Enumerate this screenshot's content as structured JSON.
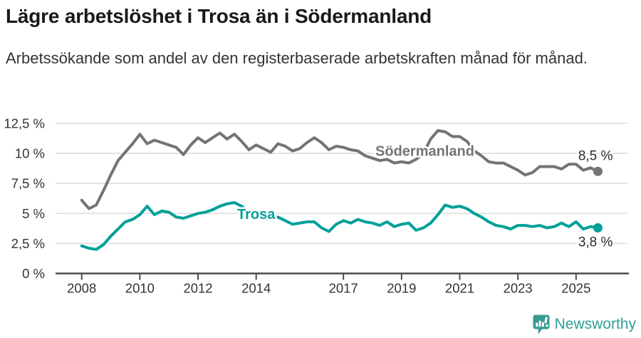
{
  "header": {
    "title": "Lägre arbetslöshet i Trosa än i Södermanland",
    "subtitle": "Arbetssökande som andel av den registerbaserade arbetskraften månad för månad."
  },
  "chart_data": {
    "type": "line",
    "unit": "%",
    "grid": "horizontal",
    "legend_position": "inline-labels",
    "colors": {
      "grid_line": "#dedede",
      "axis_line": "#4c4c4c",
      "tick_text": "#333333",
      "end_label_text": "#2b2b2b",
      "halo": "#ffffff"
    },
    "y_axis": {
      "range": [
        0,
        12.5
      ],
      "ticks": [
        {
          "value": 0,
          "label": "0 %"
        },
        {
          "value": 2.5,
          "label": "2,5 %"
        },
        {
          "value": 5,
          "label": "5 %"
        },
        {
          "value": 7.5,
          "label": "7,5 %"
        },
        {
          "value": 10,
          "label": "10 %"
        },
        {
          "value": 12.5,
          "label": "12,5 %"
        }
      ]
    },
    "x_axis": {
      "range": [
        2008,
        2025.75
      ],
      "ticks": [
        {
          "value": 2008,
          "label": "2008"
        },
        {
          "value": 2010,
          "label": "2010"
        },
        {
          "value": 2012,
          "label": "2012"
        },
        {
          "value": 2014,
          "label": "2014"
        },
        {
          "value": 2017,
          "label": "2017"
        },
        {
          "value": 2019,
          "label": "2019"
        },
        {
          "value": 2021,
          "label": "2021"
        },
        {
          "value": 2023,
          "label": "2023"
        },
        {
          "value": 2025,
          "label": "2025"
        }
      ]
    },
    "series": [
      {
        "name": "Södermanland",
        "color": "#737378",
        "end_label": "8,5 %",
        "end_label_side": "above",
        "label_anchor": {
          "x": 2019.8,
          "v": 9.8
        },
        "points": [
          [
            2008.0,
            6.1
          ],
          [
            2008.25,
            5.4
          ],
          [
            2008.5,
            5.7
          ],
          [
            2008.75,
            6.9
          ],
          [
            2009.0,
            8.2
          ],
          [
            2009.25,
            9.4
          ],
          [
            2009.5,
            10.1
          ],
          [
            2009.75,
            10.8
          ],
          [
            2010.0,
            11.6
          ],
          [
            2010.25,
            10.8
          ],
          [
            2010.5,
            11.1
          ],
          [
            2010.75,
            10.9
          ],
          [
            2011.0,
            10.7
          ],
          [
            2011.25,
            10.5
          ],
          [
            2011.5,
            9.9
          ],
          [
            2011.75,
            10.7
          ],
          [
            2012.0,
            11.3
          ],
          [
            2012.25,
            10.9
          ],
          [
            2012.5,
            11.3
          ],
          [
            2012.75,
            11.7
          ],
          [
            2013.0,
            11.2
          ],
          [
            2013.25,
            11.6
          ],
          [
            2013.5,
            11.0
          ],
          [
            2013.75,
            10.3
          ],
          [
            2014.0,
            10.7
          ],
          [
            2014.25,
            10.4
          ],
          [
            2014.5,
            10.1
          ],
          [
            2014.75,
            10.8
          ],
          [
            2015.0,
            10.6
          ],
          [
            2015.25,
            10.2
          ],
          [
            2015.5,
            10.4
          ],
          [
            2015.75,
            10.9
          ],
          [
            2016.0,
            11.3
          ],
          [
            2016.25,
            10.9
          ],
          [
            2016.5,
            10.3
          ],
          [
            2016.75,
            10.6
          ],
          [
            2017.0,
            10.5
          ],
          [
            2017.25,
            10.3
          ],
          [
            2017.5,
            10.2
          ],
          [
            2017.75,
            9.8
          ],
          [
            2018.0,
            9.6
          ],
          [
            2018.25,
            9.4
          ],
          [
            2018.5,
            9.5
          ],
          [
            2018.75,
            9.2
          ],
          [
            2019.0,
            9.3
          ],
          [
            2019.25,
            9.2
          ],
          [
            2019.5,
            9.5
          ],
          [
            2019.75,
            10.0
          ],
          [
            2020.0,
            11.2
          ],
          [
            2020.25,
            11.9
          ],
          [
            2020.5,
            11.8
          ],
          [
            2020.75,
            11.4
          ],
          [
            2021.0,
            11.4
          ],
          [
            2021.25,
            11.0
          ],
          [
            2021.5,
            10.2
          ],
          [
            2021.75,
            9.8
          ],
          [
            2022.0,
            9.3
          ],
          [
            2022.25,
            9.2
          ],
          [
            2022.5,
            9.2
          ],
          [
            2022.75,
            8.9
          ],
          [
            2023.0,
            8.6
          ],
          [
            2023.25,
            8.2
          ],
          [
            2023.5,
            8.4
          ],
          [
            2023.75,
            8.9
          ],
          [
            2024.0,
            8.9
          ],
          [
            2024.25,
            8.9
          ],
          [
            2024.5,
            8.7
          ],
          [
            2024.75,
            9.1
          ],
          [
            2025.0,
            9.1
          ],
          [
            2025.25,
            8.6
          ],
          [
            2025.5,
            8.8
          ],
          [
            2025.75,
            8.5
          ]
        ]
      },
      {
        "name": "Trosa",
        "color": "#00a099",
        "end_label": "3,8 %",
        "end_label_side": "below",
        "label_anchor": {
          "x": 2014.0,
          "v": 4.55
        },
        "points": [
          [
            2008.0,
            2.3
          ],
          [
            2008.25,
            2.1
          ],
          [
            2008.5,
            2.0
          ],
          [
            2008.75,
            2.4
          ],
          [
            2009.0,
            3.1
          ],
          [
            2009.25,
            3.7
          ],
          [
            2009.5,
            4.3
          ],
          [
            2009.75,
            4.5
          ],
          [
            2010.0,
            4.9
          ],
          [
            2010.25,
            5.6
          ],
          [
            2010.5,
            4.9
          ],
          [
            2010.75,
            5.2
          ],
          [
            2011.0,
            5.1
          ],
          [
            2011.25,
            4.7
          ],
          [
            2011.5,
            4.6
          ],
          [
            2011.75,
            4.8
          ],
          [
            2012.0,
            5.0
          ],
          [
            2012.25,
            5.1
          ],
          [
            2012.5,
            5.3
          ],
          [
            2012.75,
            5.6
          ],
          [
            2013.0,
            5.8
          ],
          [
            2013.25,
            5.9
          ],
          [
            2013.5,
            5.6
          ],
          [
            2013.75,
            5.1
          ],
          [
            2014.0,
            4.8
          ],
          [
            2014.25,
            4.6
          ],
          [
            2014.5,
            4.5
          ],
          [
            2014.75,
            4.7
          ],
          [
            2015.0,
            4.4
          ],
          [
            2015.25,
            4.1
          ],
          [
            2015.5,
            4.2
          ],
          [
            2015.75,
            4.3
          ],
          [
            2016.0,
            4.3
          ],
          [
            2016.25,
            3.8
          ],
          [
            2016.5,
            3.5
          ],
          [
            2016.75,
            4.1
          ],
          [
            2017.0,
            4.4
          ],
          [
            2017.25,
            4.2
          ],
          [
            2017.5,
            4.5
          ],
          [
            2017.75,
            4.3
          ],
          [
            2018.0,
            4.2
          ],
          [
            2018.25,
            4.0
          ],
          [
            2018.5,
            4.3
          ],
          [
            2018.75,
            3.9
          ],
          [
            2019.0,
            4.1
          ],
          [
            2019.25,
            4.2
          ],
          [
            2019.5,
            3.6
          ],
          [
            2019.75,
            3.8
          ],
          [
            2020.0,
            4.2
          ],
          [
            2020.25,
            4.9
          ],
          [
            2020.5,
            5.7
          ],
          [
            2020.75,
            5.5
          ],
          [
            2021.0,
            5.6
          ],
          [
            2021.25,
            5.4
          ],
          [
            2021.5,
            5.0
          ],
          [
            2021.75,
            4.7
          ],
          [
            2022.0,
            4.3
          ],
          [
            2022.25,
            4.0
          ],
          [
            2022.5,
            3.9
          ],
          [
            2022.75,
            3.7
          ],
          [
            2023.0,
            4.0
          ],
          [
            2023.25,
            4.0
          ],
          [
            2023.5,
            3.9
          ],
          [
            2023.75,
            4.0
          ],
          [
            2024.0,
            3.8
          ],
          [
            2024.25,
            3.9
          ],
          [
            2024.5,
            4.2
          ],
          [
            2024.75,
            3.9
          ],
          [
            2025.0,
            4.3
          ],
          [
            2025.25,
            3.7
          ],
          [
            2025.5,
            3.9
          ],
          [
            2025.75,
            3.8
          ]
        ]
      }
    ]
  },
  "footer": {
    "brand": "Newsworthy",
    "brand_color": "#2f9d95",
    "icon": "newsworthy-speech-bubble-bar-chart-icon"
  }
}
